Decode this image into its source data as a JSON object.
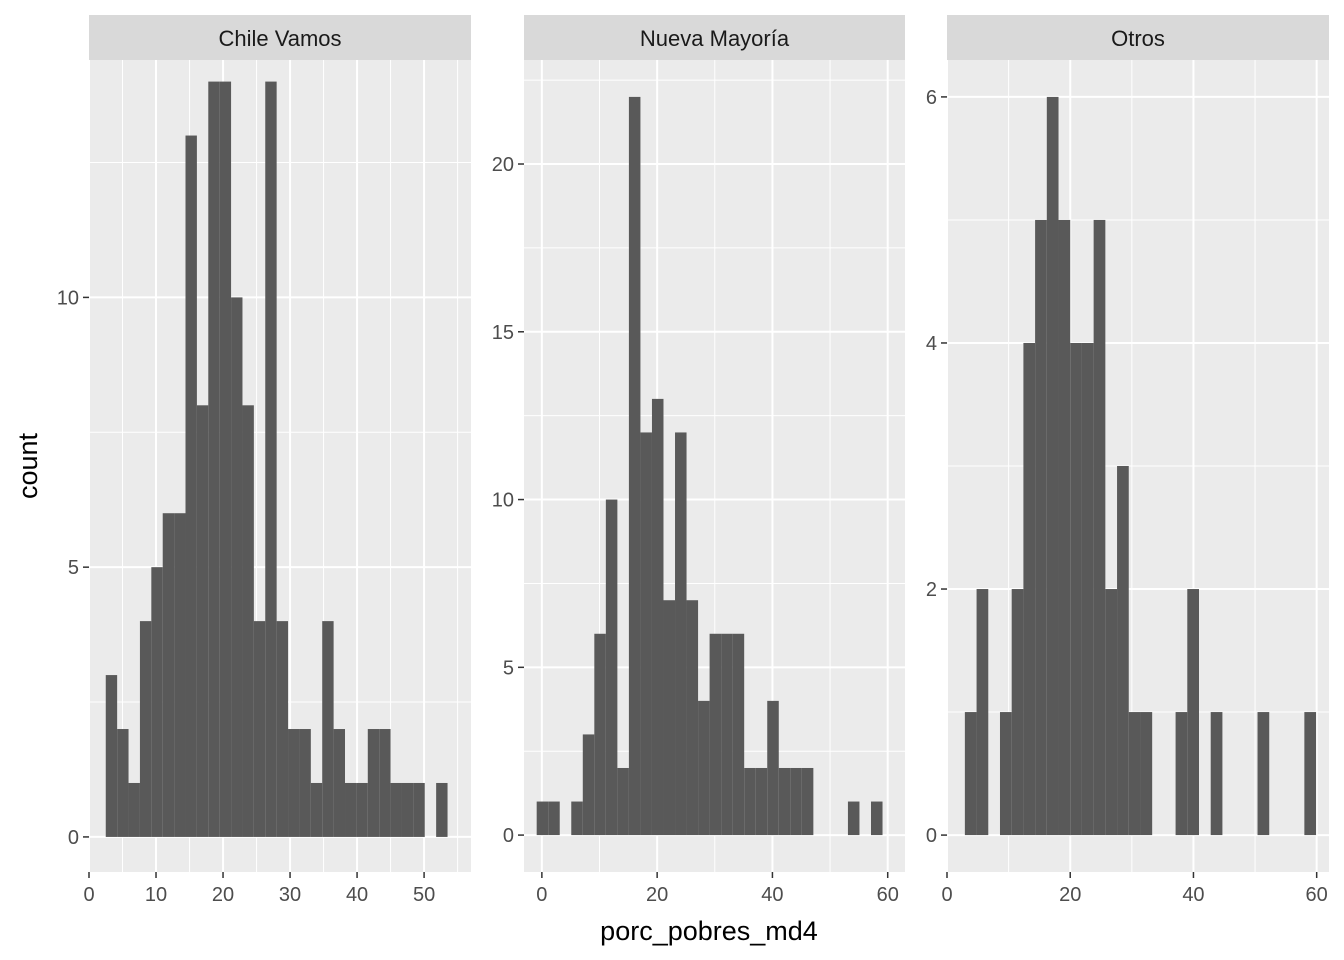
{
  "chart_data": {
    "type": "bar",
    "xlabel": "porc_pobres_md4",
    "ylabel": "count",
    "grid": true,
    "colors": {
      "bar": "#595959",
      "panel_bg": "#ebebeb",
      "strip_bg": "#d9d9d9",
      "grid": "#ffffff"
    },
    "facets": [
      {
        "name": "Chile Vamos",
        "xlim": [
          0,
          57
        ],
        "ylim": [
          -0.65,
          14.4
        ],
        "xticks": [
          0,
          10,
          20,
          30,
          40,
          50
        ],
        "yticks": [
          0,
          5,
          10
        ],
        "bins": [
          {
            "x0": 2.5,
            "x1": 4.2,
            "count": 3
          },
          {
            "x0": 4.2,
            "x1": 5.9,
            "count": 2
          },
          {
            "x0": 5.9,
            "x1": 7.6,
            "count": 1
          },
          {
            "x0": 7.6,
            "x1": 9.3,
            "count": 4
          },
          {
            "x0": 9.3,
            "x1": 11.0,
            "count": 5
          },
          {
            "x0": 11.0,
            "x1": 12.7,
            "count": 6
          },
          {
            "x0": 12.7,
            "x1": 14.4,
            "count": 6
          },
          {
            "x0": 14.4,
            "x1": 16.1,
            "count": 13
          },
          {
            "x0": 16.1,
            "x1": 17.8,
            "count": 8
          },
          {
            "x0": 17.8,
            "x1": 19.5,
            "count": 14
          },
          {
            "x0": 19.5,
            "x1": 21.2,
            "count": 14
          },
          {
            "x0": 21.2,
            "x1": 22.9,
            "count": 10
          },
          {
            "x0": 22.9,
            "x1": 24.6,
            "count": 8
          },
          {
            "x0": 24.6,
            "x1": 26.3,
            "count": 4
          },
          {
            "x0": 26.3,
            "x1": 28.0,
            "count": 14
          },
          {
            "x0": 28.0,
            "x1": 29.7,
            "count": 4
          },
          {
            "x0": 29.7,
            "x1": 31.4,
            "count": 2
          },
          {
            "x0": 31.4,
            "x1": 33.1,
            "count": 2
          },
          {
            "x0": 33.1,
            "x1": 34.8,
            "count": 1
          },
          {
            "x0": 34.8,
            "x1": 36.5,
            "count": 4
          },
          {
            "x0": 36.5,
            "x1": 38.2,
            "count": 2
          },
          {
            "x0": 38.2,
            "x1": 39.9,
            "count": 1
          },
          {
            "x0": 39.9,
            "x1": 41.6,
            "count": 1
          },
          {
            "x0": 41.6,
            "x1": 43.3,
            "count": 2
          },
          {
            "x0": 43.3,
            "x1": 45.0,
            "count": 2
          },
          {
            "x0": 45.0,
            "x1": 46.7,
            "count": 1
          },
          {
            "x0": 46.7,
            "x1": 48.4,
            "count": 1
          },
          {
            "x0": 48.4,
            "x1": 50.1,
            "count": 1
          },
          {
            "x0": 50.1,
            "x1": 51.8,
            "count": 0
          },
          {
            "x0": 51.8,
            "x1": 53.5,
            "count": 1
          }
        ]
      },
      {
        "name": "Nueva Mayoría",
        "xlim": [
          -3.1,
          63.0
        ],
        "ylim": [
          -1.1,
          23.1
        ],
        "xticks": [
          0,
          20,
          40,
          60
        ],
        "yticks": [
          0,
          5,
          10,
          15,
          20
        ],
        "bins": [
          {
            "x0": -0.9,
            "x1": 1.1,
            "count": 1
          },
          {
            "x0": 1.1,
            "x1": 3.1,
            "count": 1
          },
          {
            "x0": 3.1,
            "x1": 5.1,
            "count": 0
          },
          {
            "x0": 5.1,
            "x1": 7.1,
            "count": 1
          },
          {
            "x0": 7.1,
            "x1": 9.1,
            "count": 3
          },
          {
            "x0": 9.1,
            "x1": 11.1,
            "count": 6
          },
          {
            "x0": 11.1,
            "x1": 13.1,
            "count": 10
          },
          {
            "x0": 13.1,
            "x1": 15.1,
            "count": 2
          },
          {
            "x0": 15.1,
            "x1": 17.1,
            "count": 22
          },
          {
            "x0": 17.1,
            "x1": 19.1,
            "count": 12
          },
          {
            "x0": 19.1,
            "x1": 21.1,
            "count": 13
          },
          {
            "x0": 21.1,
            "x1": 23.1,
            "count": 7
          },
          {
            "x0": 23.1,
            "x1": 25.1,
            "count": 12
          },
          {
            "x0": 25.1,
            "x1": 27.1,
            "count": 7
          },
          {
            "x0": 27.1,
            "x1": 29.1,
            "count": 4
          },
          {
            "x0": 29.1,
            "x1": 31.1,
            "count": 6
          },
          {
            "x0": 31.1,
            "x1": 33.1,
            "count": 6
          },
          {
            "x0": 33.1,
            "x1": 35.1,
            "count": 6
          },
          {
            "x0": 35.1,
            "x1": 37.1,
            "count": 2
          },
          {
            "x0": 37.1,
            "x1": 39.1,
            "count": 2
          },
          {
            "x0": 39.1,
            "x1": 41.1,
            "count": 4
          },
          {
            "x0": 41.1,
            "x1": 43.1,
            "count": 2
          },
          {
            "x0": 43.1,
            "x1": 45.1,
            "count": 2
          },
          {
            "x0": 45.1,
            "x1": 47.1,
            "count": 2
          },
          {
            "x0": 47.1,
            "x1": 49.1,
            "count": 0
          },
          {
            "x0": 49.1,
            "x1": 51.1,
            "count": 0
          },
          {
            "x0": 51.1,
            "x1": 53.1,
            "count": 0
          },
          {
            "x0": 53.1,
            "x1": 55.1,
            "count": 1
          },
          {
            "x0": 55.1,
            "x1": 57.1,
            "count": 0
          },
          {
            "x0": 57.1,
            "x1": 59.1,
            "count": 1
          }
        ]
      },
      {
        "name": "Otros",
        "xlim": [
          0,
          62
        ],
        "ylim": [
          -0.3,
          6.3
        ],
        "xticks": [
          0,
          20,
          40,
          60
        ],
        "yticks": [
          0,
          2,
          4,
          6
        ],
        "bins": [
          {
            "x0": 2.9,
            "x1": 4.8,
            "count": 1
          },
          {
            "x0": 4.8,
            "x1": 6.7,
            "count": 2
          },
          {
            "x0": 6.7,
            "x1": 8.6,
            "count": 0
          },
          {
            "x0": 8.6,
            "x1": 10.5,
            "count": 1
          },
          {
            "x0": 10.5,
            "x1": 12.4,
            "count": 2
          },
          {
            "x0": 12.4,
            "x1": 14.3,
            "count": 4
          },
          {
            "x0": 14.3,
            "x1": 16.2,
            "count": 5
          },
          {
            "x0": 16.2,
            "x1": 18.1,
            "count": 6
          },
          {
            "x0": 18.1,
            "x1": 20.0,
            "count": 5
          },
          {
            "x0": 20.0,
            "x1": 21.9,
            "count": 4
          },
          {
            "x0": 21.9,
            "x1": 23.8,
            "count": 4
          },
          {
            "x0": 23.8,
            "x1": 25.7,
            "count": 5
          },
          {
            "x0": 25.7,
            "x1": 27.6,
            "count": 2
          },
          {
            "x0": 27.6,
            "x1": 29.5,
            "count": 3
          },
          {
            "x0": 29.5,
            "x1": 31.4,
            "count": 1
          },
          {
            "x0": 31.4,
            "x1": 33.3,
            "count": 1
          },
          {
            "x0": 33.3,
            "x1": 35.2,
            "count": 0
          },
          {
            "x0": 35.2,
            "x1": 37.1,
            "count": 0
          },
          {
            "x0": 37.1,
            "x1": 39.0,
            "count": 1
          },
          {
            "x0": 39.0,
            "x1": 40.9,
            "count": 2
          },
          {
            "x0": 40.9,
            "x1": 42.8,
            "count": 0
          },
          {
            "x0": 42.8,
            "x1": 44.7,
            "count": 1
          },
          {
            "x0": 44.7,
            "x1": 46.6,
            "count": 0
          },
          {
            "x0": 46.6,
            "x1": 48.5,
            "count": 0
          },
          {
            "x0": 48.5,
            "x1": 50.4,
            "count": 0
          },
          {
            "x0": 50.4,
            "x1": 52.3,
            "count": 1
          },
          {
            "x0": 52.3,
            "x1": 54.2,
            "count": 0
          },
          {
            "x0": 54.2,
            "x1": 56.1,
            "count": 0
          },
          {
            "x0": 56.1,
            "x1": 58.0,
            "count": 0
          },
          {
            "x0": 58.0,
            "x1": 59.9,
            "count": 1
          }
        ]
      }
    ]
  }
}
